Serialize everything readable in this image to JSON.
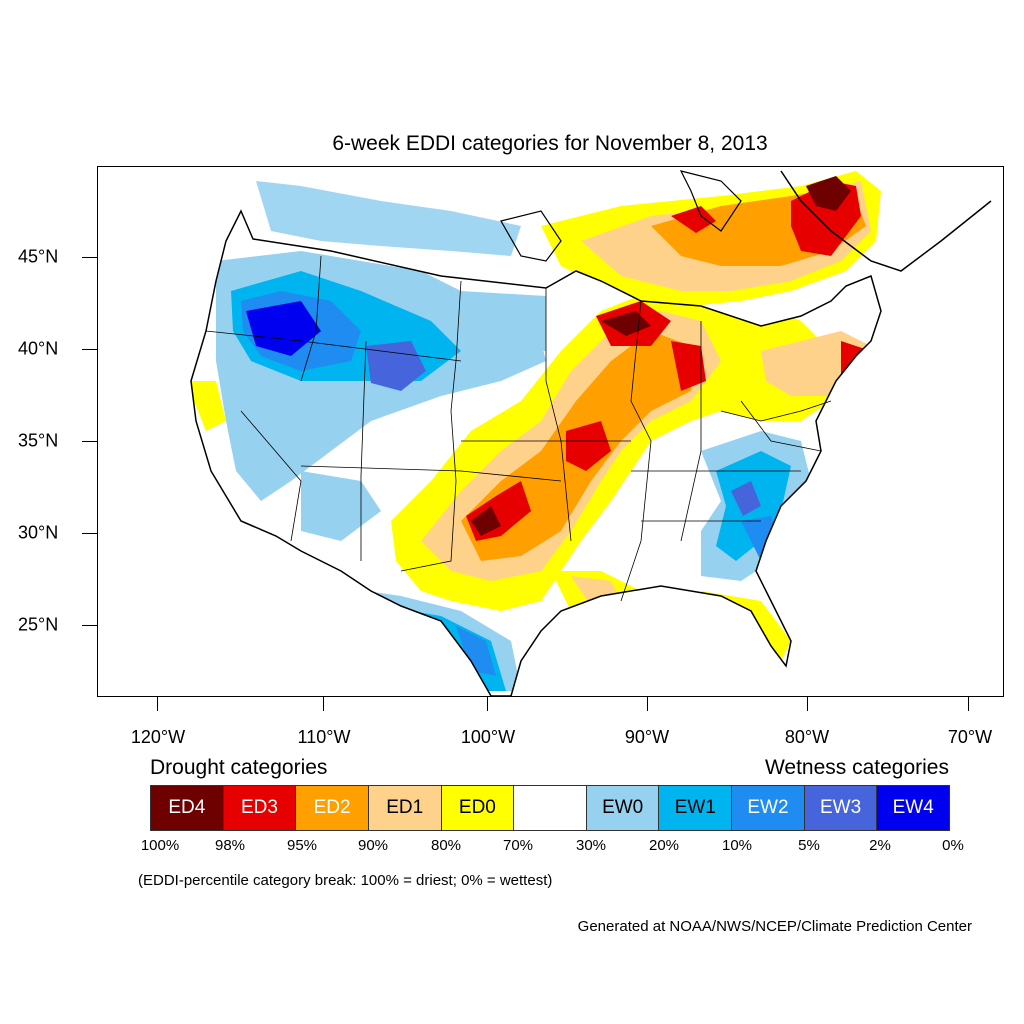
{
  "title": "6-week EDDI categories for November 8, 2013",
  "lat_labels": [
    "45°N",
    "40°N",
    "35°N",
    "30°N",
    "25°N"
  ],
  "lon_labels": [
    "120°W",
    "110°W",
    "100°W",
    "90°W",
    "80°W",
    "70°W"
  ],
  "drought_heading": "Drought categories",
  "wetness_heading": "Wetness categories",
  "categories": [
    {
      "label": "ED4",
      "color": "#6f0000",
      "text_color": "#ffffff"
    },
    {
      "label": "ED3",
      "color": "#e60000",
      "text_color": "#ffffff"
    },
    {
      "label": "ED2",
      "color": "#ffa000",
      "text_color": "#ffffff"
    },
    {
      "label": "ED1",
      "color": "#ffd28c",
      "text_color": "#000000"
    },
    {
      "label": "ED0",
      "color": "#ffff00",
      "text_color": "#000000"
    },
    {
      "label": "",
      "color": "#ffffff",
      "text_color": "#000000"
    },
    {
      "label": "EW0",
      "color": "#96d2f0",
      "text_color": "#000000"
    },
    {
      "label": "EW1",
      "color": "#00b4f0",
      "text_color": "#000000"
    },
    {
      "label": "EW2",
      "color": "#1e8cf0",
      "text_color": "#ffffff"
    },
    {
      "label": "EW3",
      "color": "#4664dc",
      "text_color": "#ffffff"
    },
    {
      "label": "EW4",
      "color": "#0000f0",
      "text_color": "#ffffff"
    }
  ],
  "percent_breaks": [
    "100%",
    "98%",
    "95%",
    "90%",
    "80%",
    "70%",
    "30%",
    "20%",
    "10%",
    "5%",
    "2%",
    "0%"
  ],
  "breaks_note": "(EDDI-percentile category break: 100% = driest; 0% = wettest)",
  "credit": "Generated at NOAA/NWS/NCEP/Climate Prediction Center"
}
